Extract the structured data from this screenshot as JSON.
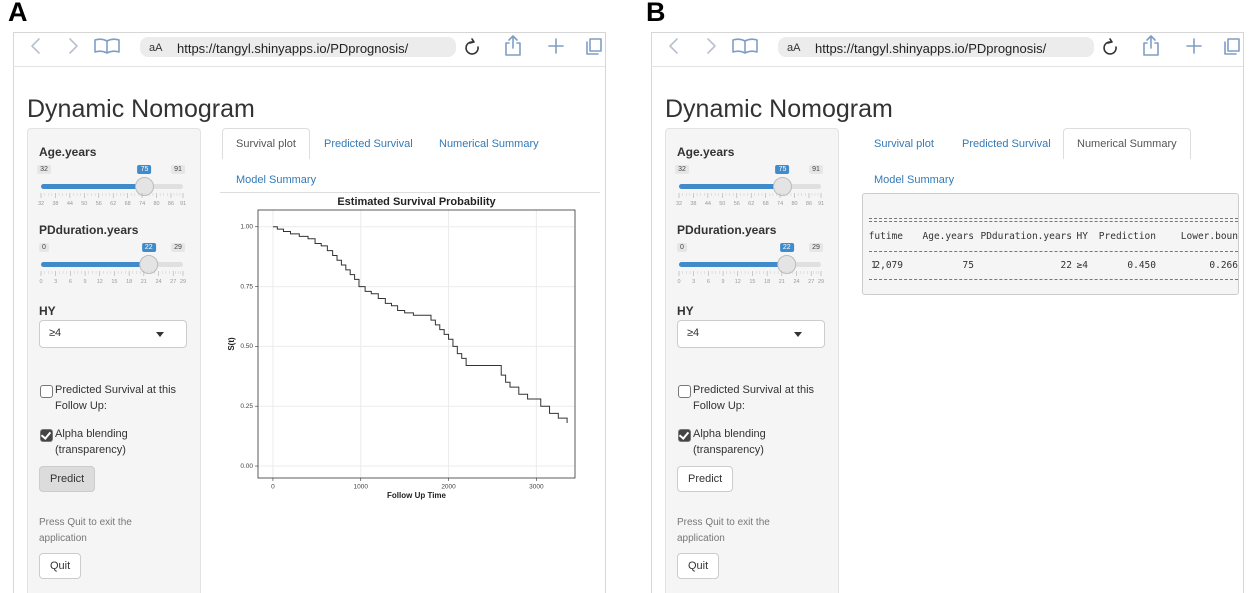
{
  "panel_a": {
    "label": "A",
    "browser": {
      "text_size": "aA",
      "url": "https://tangyl.shinyapps.io/PDprognosis/"
    },
    "app": {
      "title": "Dynamic Nomogram",
      "sidebar": {
        "sliders": [
          {
            "label": "Age.years",
            "min": 32,
            "max": 91,
            "value": 75,
            "ticks": [
              32,
              38,
              44,
              50,
              56,
              62,
              68,
              74,
              80,
              86,
              91
            ]
          },
          {
            "label": "PDduration.years",
            "min": 0,
            "max": 29,
            "value": 22,
            "ticks": [
              0,
              3,
              6,
              9,
              12,
              15,
              18,
              21,
              24,
              27,
              29
            ]
          }
        ],
        "select": {
          "label": "HY",
          "value": "≥4"
        },
        "checkboxes": [
          {
            "label": "Predicted Survival at this Follow Up:",
            "checked": false
          },
          {
            "label": "Alpha blending (transparency)",
            "checked": true
          }
        ],
        "predict_button": "Predict",
        "quit_note": "Press Quit to exit the application",
        "quit_button": "Quit"
      },
      "tabs": [
        {
          "label": "Survival plot",
          "active": true
        },
        {
          "label": "Predicted Survival",
          "active": false
        },
        {
          "label": "Numerical Summary",
          "active": false
        },
        {
          "label": "Model Summary",
          "active": false
        }
      ],
      "plot": {
        "type": "step",
        "title": "Estimated Survival Probability",
        "x_label": "Follow Up Time",
        "y_label": "S(t)",
        "x": [
          0,
          50,
          120,
          200,
          300,
          400,
          480,
          550,
          620,
          680,
          730,
          780,
          830,
          880,
          930,
          980,
          1050,
          1120,
          1200,
          1280,
          1350,
          1420,
          1500,
          1600,
          1750,
          1800,
          1850,
          1900,
          1950,
          2000,
          2050,
          2100,
          2150,
          2200,
          2550,
          2600,
          2650,
          2700,
          2800,
          2900,
          3000,
          3050,
          3150,
          3250,
          3350
        ],
        "y": [
          1.0,
          0.99,
          0.98,
          0.97,
          0.96,
          0.95,
          0.93,
          0.92,
          0.9,
          0.88,
          0.86,
          0.84,
          0.82,
          0.8,
          0.78,
          0.75,
          0.73,
          0.72,
          0.7,
          0.68,
          0.67,
          0.65,
          0.64,
          0.63,
          0.63,
          0.61,
          0.59,
          0.57,
          0.55,
          0.53,
          0.5,
          0.47,
          0.45,
          0.42,
          0.42,
          0.38,
          0.35,
          0.33,
          0.3,
          0.28,
          0.28,
          0.25,
          0.22,
          0.2,
          0.18
        ],
        "color": "#333333",
        "xlim": [
          -170,
          3440
        ],
        "ylim": [
          -0.05,
          1.07
        ],
        "xticks": [
          0,
          1000,
          2000,
          3000
        ],
        "yticks": [
          {
            "value": 0,
            "label": "0.00"
          },
          {
            "value": 0.25,
            "label": "0.25"
          },
          {
            "value": 0.5,
            "label": "0.50"
          },
          {
            "value": 0.75,
            "label": "0.75"
          },
          {
            "value": 1,
            "label": "1.00"
          }
        ],
        "grid": true
      }
    }
  },
  "panel_b": {
    "label": "B",
    "browser": {
      "text_size": "aA",
      "url": "https://tangyl.shinyapps.io/PDprognosis/"
    },
    "app": {
      "title": "Dynamic Nomogram",
      "sidebar": {
        "sliders": [
          {
            "label": "Age.years",
            "min": 32,
            "max": 91,
            "value": 75,
            "ticks": [
              32,
              38,
              44,
              50,
              56,
              62,
              68,
              74,
              80,
              86,
              91
            ]
          },
          {
            "label": "PDduration.years",
            "min": 0,
            "max": 29,
            "value": 22,
            "ticks": [
              0,
              3,
              6,
              9,
              12,
              15,
              18,
              21,
              24,
              27,
              29
            ]
          }
        ],
        "select": {
          "label": "HY",
          "value": "≥4"
        },
        "checkboxes": [
          {
            "label": "Predicted Survival at this Follow Up:",
            "checked": false
          },
          {
            "label": "Alpha blending (transparency)",
            "checked": true
          }
        ],
        "predict_button": "Predict",
        "quit_note": "Press Quit to exit the application",
        "quit_button": "Quit"
      },
      "tabs": [
        {
          "label": "Survival plot",
          "active": false
        },
        {
          "label": "Predicted Survival",
          "active": false
        },
        {
          "label": "Numerical Summary",
          "active": true
        },
        {
          "label": "Model Summary",
          "active": false
        }
      ],
      "table": {
        "header": [
          "futime",
          "Age.years",
          "PDduration.years",
          "HY",
          "Prediction",
          "Lower.boun"
        ],
        "rows": [
          [
            "1",
            "2,079",
            "75",
            "22",
            "≥4",
            "0.450",
            "0.266"
          ]
        ]
      }
    }
  }
}
